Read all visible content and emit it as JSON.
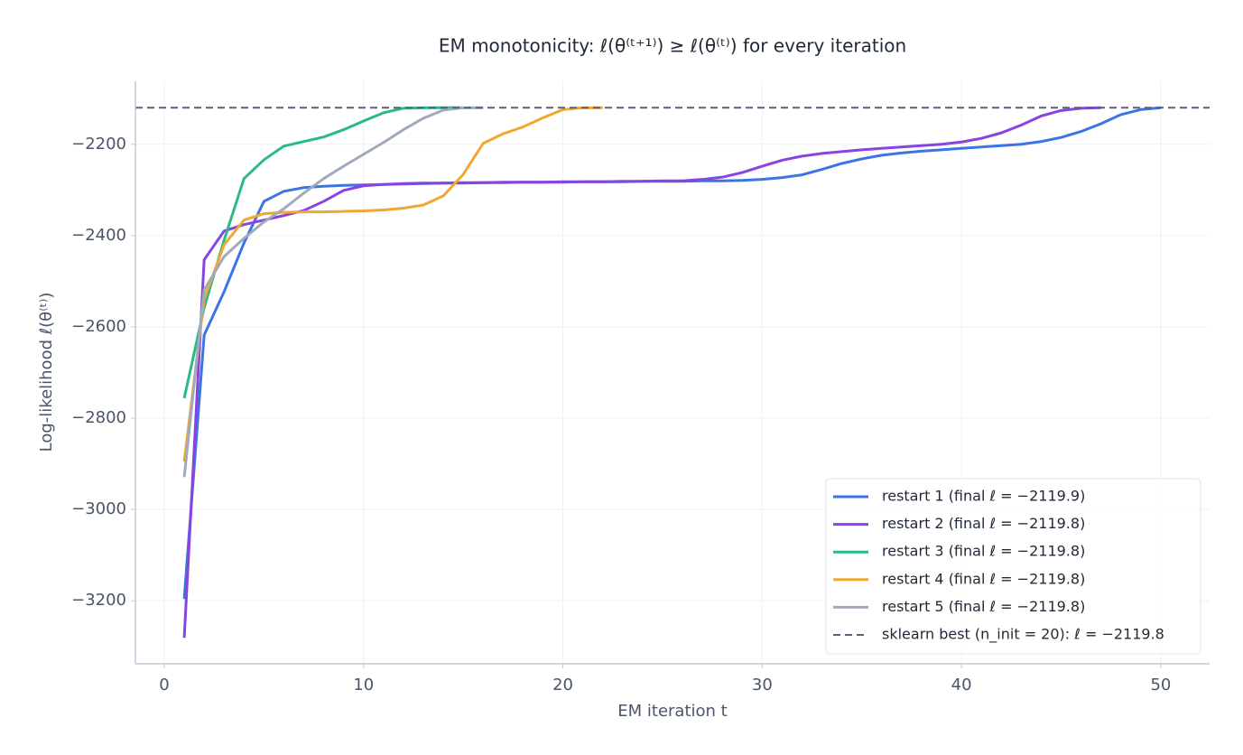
{
  "chart_data": {
    "type": "line",
    "title": "EM monotonicity: ℓ(θ⁽ᵗ⁺¹⁾) ≥ ℓ(θ⁽ᵗ⁾) for every iteration",
    "x_label": "EM iteration t",
    "y_label": "Log-likelihood ℓ(θ⁽ᵗ⁾)",
    "x": [
      1,
      2,
      3,
      4,
      5,
      6,
      7,
      8,
      9,
      10,
      11,
      12,
      13,
      14,
      15,
      16,
      17,
      18,
      19,
      20,
      21,
      22,
      23,
      24,
      25,
      26,
      27,
      28,
      29,
      30,
      31,
      32,
      33,
      34,
      35,
      36,
      37,
      38,
      39,
      40,
      41,
      42,
      43,
      44,
      45,
      46,
      47,
      48,
      49,
      50
    ],
    "xlim": [
      -1.45,
      52.45
    ],
    "xticks": [
      0,
      10,
      20,
      30,
      40,
      50
    ],
    "ylim": [
      -3338,
      -2062
    ],
    "yticks": [
      {
        "value": -3200,
        "label": "−3200"
      },
      {
        "value": -3000,
        "label": "−3000"
      },
      {
        "value": -2800,
        "label": "−2800"
      },
      {
        "value": -2600,
        "label": "−2600"
      },
      {
        "value": -2400,
        "label": "−2400"
      },
      {
        "value": -2200,
        "label": "−2200"
      }
    ],
    "grid": true,
    "legend": "lower right",
    "series": [
      {
        "name": "restart 1  (final ℓ = −2119.9)",
        "color": "#3b74e4",
        "values": [
          -3196,
          -2618,
          -2523,
          -2416,
          -2325,
          -2303,
          -2295,
          -2292,
          -2290,
          -2289,
          -2288,
          -2287,
          -2286,
          -2285,
          -2285,
          -2284,
          -2284,
          -2283,
          -2283,
          -2283,
          -2282,
          -2282,
          -2282,
          -2281,
          -2281,
          -2281,
          -2280,
          -2280,
          -2279,
          -2277,
          -2273,
          -2267,
          -2255,
          -2242,
          -2232,
          -2224,
          -2219,
          -2215,
          -2212,
          -2209,
          -2206,
          -2203,
          -2200,
          -2194,
          -2185,
          -2172,
          -2155,
          -2135,
          -2124,
          -2119.9
        ]
      },
      {
        "name": "restart 2  (final ℓ = −2119.8)",
        "color": "#8844e0",
        "values": [
          -3281,
          -2453,
          -2390,
          -2376,
          -2366,
          -2356,
          -2345,
          -2325,
          -2301,
          -2291,
          -2288,
          -2286,
          -2285,
          -2285,
          -2284,
          -2284,
          -2283,
          -2283,
          -2283,
          -2282,
          -2282,
          -2282,
          -2281,
          -2281,
          -2280,
          -2280,
          -2277,
          -2272,
          -2262,
          -2248,
          -2235,
          -2226,
          -2220,
          -2216,
          -2212,
          -2209,
          -2206,
          -2203,
          -2200,
          -2195,
          -2187,
          -2175,
          -2158,
          -2138,
          -2126,
          -2121,
          -2119.8,
          null,
          null,
          null
        ]
      },
      {
        "name": "restart 3  (final ℓ = −2119.8)",
        "color": "#2bb98a",
        "values": [
          -2756,
          -2558,
          -2410,
          -2275,
          -2234,
          -2204,
          -2194,
          -2184,
          -2168,
          -2149,
          -2131,
          -2121,
          -2120,
          -2119.9,
          -2119.8,
          null,
          null,
          null,
          null,
          null,
          null,
          null,
          null,
          null,
          null,
          null,
          null,
          null,
          null,
          null,
          null,
          null,
          null,
          null,
          null,
          null,
          null,
          null,
          null,
          null,
          null,
          null,
          null,
          null,
          null,
          null,
          null,
          null,
          null,
          null
        ]
      },
      {
        "name": "restart 4  (final ℓ = −2119.8)",
        "color": "#f0a830",
        "values": [
          -2895,
          -2539,
          -2420,
          -2366,
          -2352,
          -2349,
          -2348,
          -2348,
          -2347,
          -2346,
          -2344,
          -2340,
          -2333,
          -2313,
          -2266,
          -2198,
          -2177,
          -2162,
          -2142,
          -2124,
          -2120,
          -2119.8,
          null,
          null,
          null,
          null,
          null,
          null,
          null,
          null,
          null,
          null,
          null,
          null,
          null,
          null,
          null,
          null,
          null,
          null,
          null,
          null,
          null,
          null,
          null,
          null,
          null,
          null,
          null,
          null
        ]
      },
      {
        "name": "restart 5  (final ℓ = −2119.8)",
        "color": "#a0aabb",
        "values": [
          -2929,
          -2519,
          -2446,
          -2406,
          -2370,
          -2341,
          -2307,
          -2275,
          -2248,
          -2222,
          -2196,
          -2168,
          -2143,
          -2125,
          -2120,
          -2119.8,
          null,
          null,
          null,
          null,
          null,
          null,
          null,
          null,
          null,
          null,
          null,
          null,
          null,
          null,
          null,
          null,
          null,
          null,
          null,
          null,
          null,
          null,
          null,
          null,
          null,
          null,
          null,
          null,
          null,
          null,
          null,
          null,
          null,
          null
        ]
      }
    ],
    "reference_line": {
      "value": -2119.8,
      "label": "sklearn best (n_init = 20): ℓ = −2119.8",
      "color": "#5a5f7a",
      "dashed": true
    }
  }
}
